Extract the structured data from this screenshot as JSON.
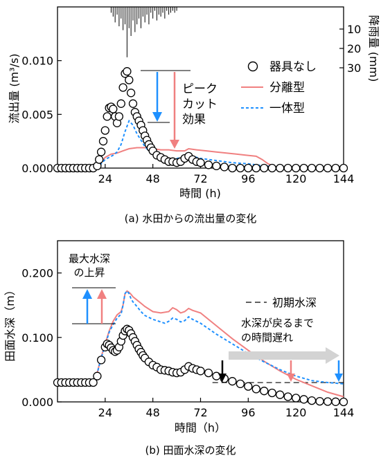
{
  "chart_data": [
    {
      "type": "line",
      "caption": "(a) 水田からの流出量の変化",
      "xlabel": "時間 (h)",
      "ylabel": "流出量 (m³/s)",
      "y2label": "降雨量 (mm)",
      "xlim": [
        0,
        144
      ],
      "ylim": [
        0,
        0.015
      ],
      "y2lim": [
        0,
        80
      ],
      "xticks": [
        24,
        48,
        72,
        96,
        120,
        144
      ],
      "yticks": [
        0.0,
        0.005,
        0.01
      ],
      "ytick_labels": [
        "0.000",
        "0.005",
        "0.010"
      ],
      "y2ticks": [
        10,
        20,
        30
      ],
      "legend": [
        "器具なし",
        "分離型",
        "一体型"
      ],
      "annotation": "ピーク\nカット\n効果",
      "rain_times": [
        27,
        28,
        29,
        30,
        31,
        32,
        33,
        34,
        35,
        36,
        37,
        38,
        39,
        40,
        41,
        42,
        43,
        44,
        45,
        46,
        47,
        48,
        49,
        50,
        51,
        52,
        53,
        54,
        55,
        56,
        57,
        58,
        59,
        60
      ],
      "rain_mm": [
        3,
        5,
        8,
        4,
        10,
        6,
        12,
        9,
        26,
        11,
        15,
        7,
        13,
        9,
        6,
        11,
        5,
        8,
        4,
        9,
        3,
        6,
        2,
        7,
        4,
        5,
        3,
        6,
        2,
        4,
        3,
        2,
        3,
        2
      ],
      "series": [
        {
          "name": "器具なし",
          "style": "circles",
          "x": [
            0,
            2,
            4,
            6,
            8,
            10,
            12,
            14,
            16,
            18,
            20,
            21,
            22,
            23,
            24,
            25,
            26,
            27,
            28,
            29,
            30,
            31,
            32,
            33,
            34,
            35,
            36,
            37,
            38,
            39,
            40,
            41,
            42,
            43,
            44,
            45,
            46,
            47,
            48,
            50,
            52,
            54,
            56,
            58,
            60,
            62,
            64,
            66,
            68,
            70,
            72,
            76,
            80,
            84,
            88,
            92,
            96,
            100,
            104,
            108,
            112,
            116,
            120,
            124,
            128,
            132,
            136,
            140,
            144
          ],
          "y": [
            0,
            0,
            0,
            0,
            0,
            0,
            0,
            0,
            0,
            0,
            0.0002,
            0.0008,
            0.0015,
            0.0025,
            0.0035,
            0.0048,
            0.0056,
            0.0057,
            0.0055,
            0.0048,
            0.0042,
            0.0048,
            0.006,
            0.0075,
            0.0088,
            0.009,
            0.0082,
            0.007,
            0.006,
            0.0052,
            0.0048,
            0.0044,
            0.004,
            0.0035,
            0.003,
            0.0026,
            0.0022,
            0.0019,
            0.0016,
            0.0012,
            0.001,
            0.0008,
            0.0006,
            0.0006,
            0.0005,
            0.0006,
            0.0009,
            0.0011,
            0.0008,
            0.0006,
            0.0005,
            0.0003,
            0.0002,
            0.0001,
            0,
            0,
            0,
            0,
            0,
            0,
            0,
            0,
            0,
            0,
            0,
            0,
            0,
            0,
            0
          ]
        },
        {
          "name": "分離型",
          "style": "solid",
          "x": [
            0,
            20,
            22,
            24,
            27,
            30,
            33,
            36,
            40,
            45,
            48,
            52,
            56,
            60,
            64,
            66,
            70,
            75,
            80,
            85,
            90,
            95,
            100,
            103,
            106,
            110,
            120,
            130,
            144
          ],
          "y": [
            0,
            0,
            0.0005,
            0.001,
            0.0013,
            0.0014,
            0.0016,
            0.0018,
            0.0019,
            0.0019,
            0.0018,
            0.0017,
            0.0017,
            0.0016,
            0.0016,
            0.0018,
            0.0017,
            0.0016,
            0.0015,
            0.0014,
            0.0013,
            0.0012,
            0.0011,
            0.0008,
            0.0004,
            0.0001,
            0,
            0,
            0
          ]
        },
        {
          "name": "一体型",
          "style": "dashed",
          "x": [
            0,
            20,
            22,
            24,
            26,
            28,
            30,
            32,
            34,
            36,
            38,
            40,
            42,
            44,
            46,
            48,
            52,
            56,
            60,
            64,
            66,
            68,
            72,
            80,
            88,
            96,
            104,
            110,
            120,
            144
          ],
          "y": [
            0,
            0,
            0.0004,
            0.0008,
            0.001,
            0.0012,
            0.0015,
            0.0022,
            0.0034,
            0.0044,
            0.004,
            0.0032,
            0.0026,
            0.002,
            0.0016,
            0.0013,
            0.001,
            0.0009,
            0.0009,
            0.001,
            0.0012,
            0.0011,
            0.0009,
            0.0007,
            0.0005,
            0.0004,
            0.0002,
            0.0001,
            0,
            0
          ]
        }
      ]
    },
    {
      "type": "line",
      "caption": "(b) 田面水深の変化",
      "xlabel": "時間（h）",
      "ylabel": "田面水深（m）",
      "xlim": [
        0,
        144
      ],
      "ylim": [
        0,
        0.25
      ],
      "xticks": [
        24,
        48,
        72,
        96,
        120,
        144
      ],
      "yticks": [
        0.0,
        0.1,
        0.2
      ],
      "ytick_labels": [
        "0.000",
        "0.100",
        "0.200"
      ],
      "legend": [
        "初期水深"
      ],
      "annotations": [
        "最大水深\nの上昇",
        "水深が戻るまで\nの時間遅れ"
      ],
      "initial_depth": 0.03,
      "series": [
        {
          "name": "器具なし",
          "style": "circles",
          "x": [
            0,
            2,
            4,
            6,
            8,
            10,
            12,
            14,
            16,
            18,
            20,
            22,
            24,
            25,
            26,
            27,
            28,
            29,
            30,
            31,
            32,
            33,
            34,
            35,
            36,
            37,
            38,
            39,
            40,
            41,
            42,
            43,
            44,
            46,
            48,
            50,
            52,
            54,
            56,
            58,
            60,
            62,
            64,
            66,
            68,
            70,
            72,
            76,
            80,
            84,
            88,
            92,
            96,
            100,
            104,
            108,
            112,
            116,
            120,
            124,
            128,
            132,
            136,
            140,
            144
          ],
          "y": [
            0.03,
            0.03,
            0.03,
            0.03,
            0.03,
            0.03,
            0.03,
            0.03,
            0.03,
            0.03,
            0.04,
            0.065,
            0.085,
            0.09,
            0.088,
            0.084,
            0.08,
            0.078,
            0.08,
            0.085,
            0.094,
            0.103,
            0.11,
            0.113,
            0.111,
            0.106,
            0.1,
            0.094,
            0.088,
            0.082,
            0.077,
            0.072,
            0.068,
            0.062,
            0.057,
            0.054,
            0.05,
            0.049,
            0.048,
            0.046,
            0.045,
            0.046,
            0.05,
            0.055,
            0.052,
            0.05,
            0.048,
            0.045,
            0.04,
            0.036,
            0.032,
            0.028,
            0.024,
            0.02,
            0.017,
            0.014,
            0.011,
            0.008,
            0.006,
            0.004,
            0.002,
            0.001,
            0.0005,
            0.0002,
            0
          ]
        },
        {
          "name": "分離型",
          "style": "solid",
          "x": [
            0,
            18,
            20,
            22,
            24,
            26,
            28,
            30,
            32,
            33,
            34,
            35,
            36,
            37,
            38,
            40,
            42,
            44,
            48,
            52,
            56,
            58,
            60,
            62,
            64,
            66,
            68,
            72,
            80,
            88,
            96,
            104,
            112,
            120,
            128,
            136,
            144
          ],
          "y": [
            0.03,
            0.03,
            0.045,
            0.07,
            0.09,
            0.11,
            0.125,
            0.135,
            0.14,
            0.15,
            0.168,
            0.172,
            0.17,
            0.167,
            0.163,
            0.158,
            0.153,
            0.148,
            0.14,
            0.138,
            0.14,
            0.146,
            0.143,
            0.138,
            0.14,
            0.145,
            0.142,
            0.138,
            0.118,
            0.098,
            0.08,
            0.063,
            0.048,
            0.035,
            0.025,
            0.015,
            0.008
          ]
        },
        {
          "name": "一体型",
          "style": "dashed",
          "x": [
            0,
            18,
            20,
            22,
            24,
            26,
            28,
            30,
            32,
            33,
            34,
            35,
            36,
            37,
            38,
            40,
            42,
            44,
            48,
            52,
            54,
            56,
            58,
            60,
            62,
            64,
            66,
            68,
            72,
            80,
            88,
            96,
            104,
            112,
            120,
            128,
            136,
            144
          ],
          "y": [
            0.03,
            0.03,
            0.045,
            0.068,
            0.088,
            0.108,
            0.12,
            0.13,
            0.136,
            0.15,
            0.168,
            0.172,
            0.168,
            0.16,
            0.155,
            0.148,
            0.14,
            0.134,
            0.128,
            0.124,
            0.122,
            0.125,
            0.13,
            0.128,
            0.124,
            0.126,
            0.132,
            0.128,
            0.122,
            0.105,
            0.09,
            0.075,
            0.062,
            0.05,
            0.04,
            0.033,
            0.03,
            0.028
          ]
        }
      ]
    }
  ],
  "colors": {
    "red": "#f08080",
    "blue": "#1e90ff",
    "black": "#000000",
    "gray": "#d3d3d3"
  }
}
